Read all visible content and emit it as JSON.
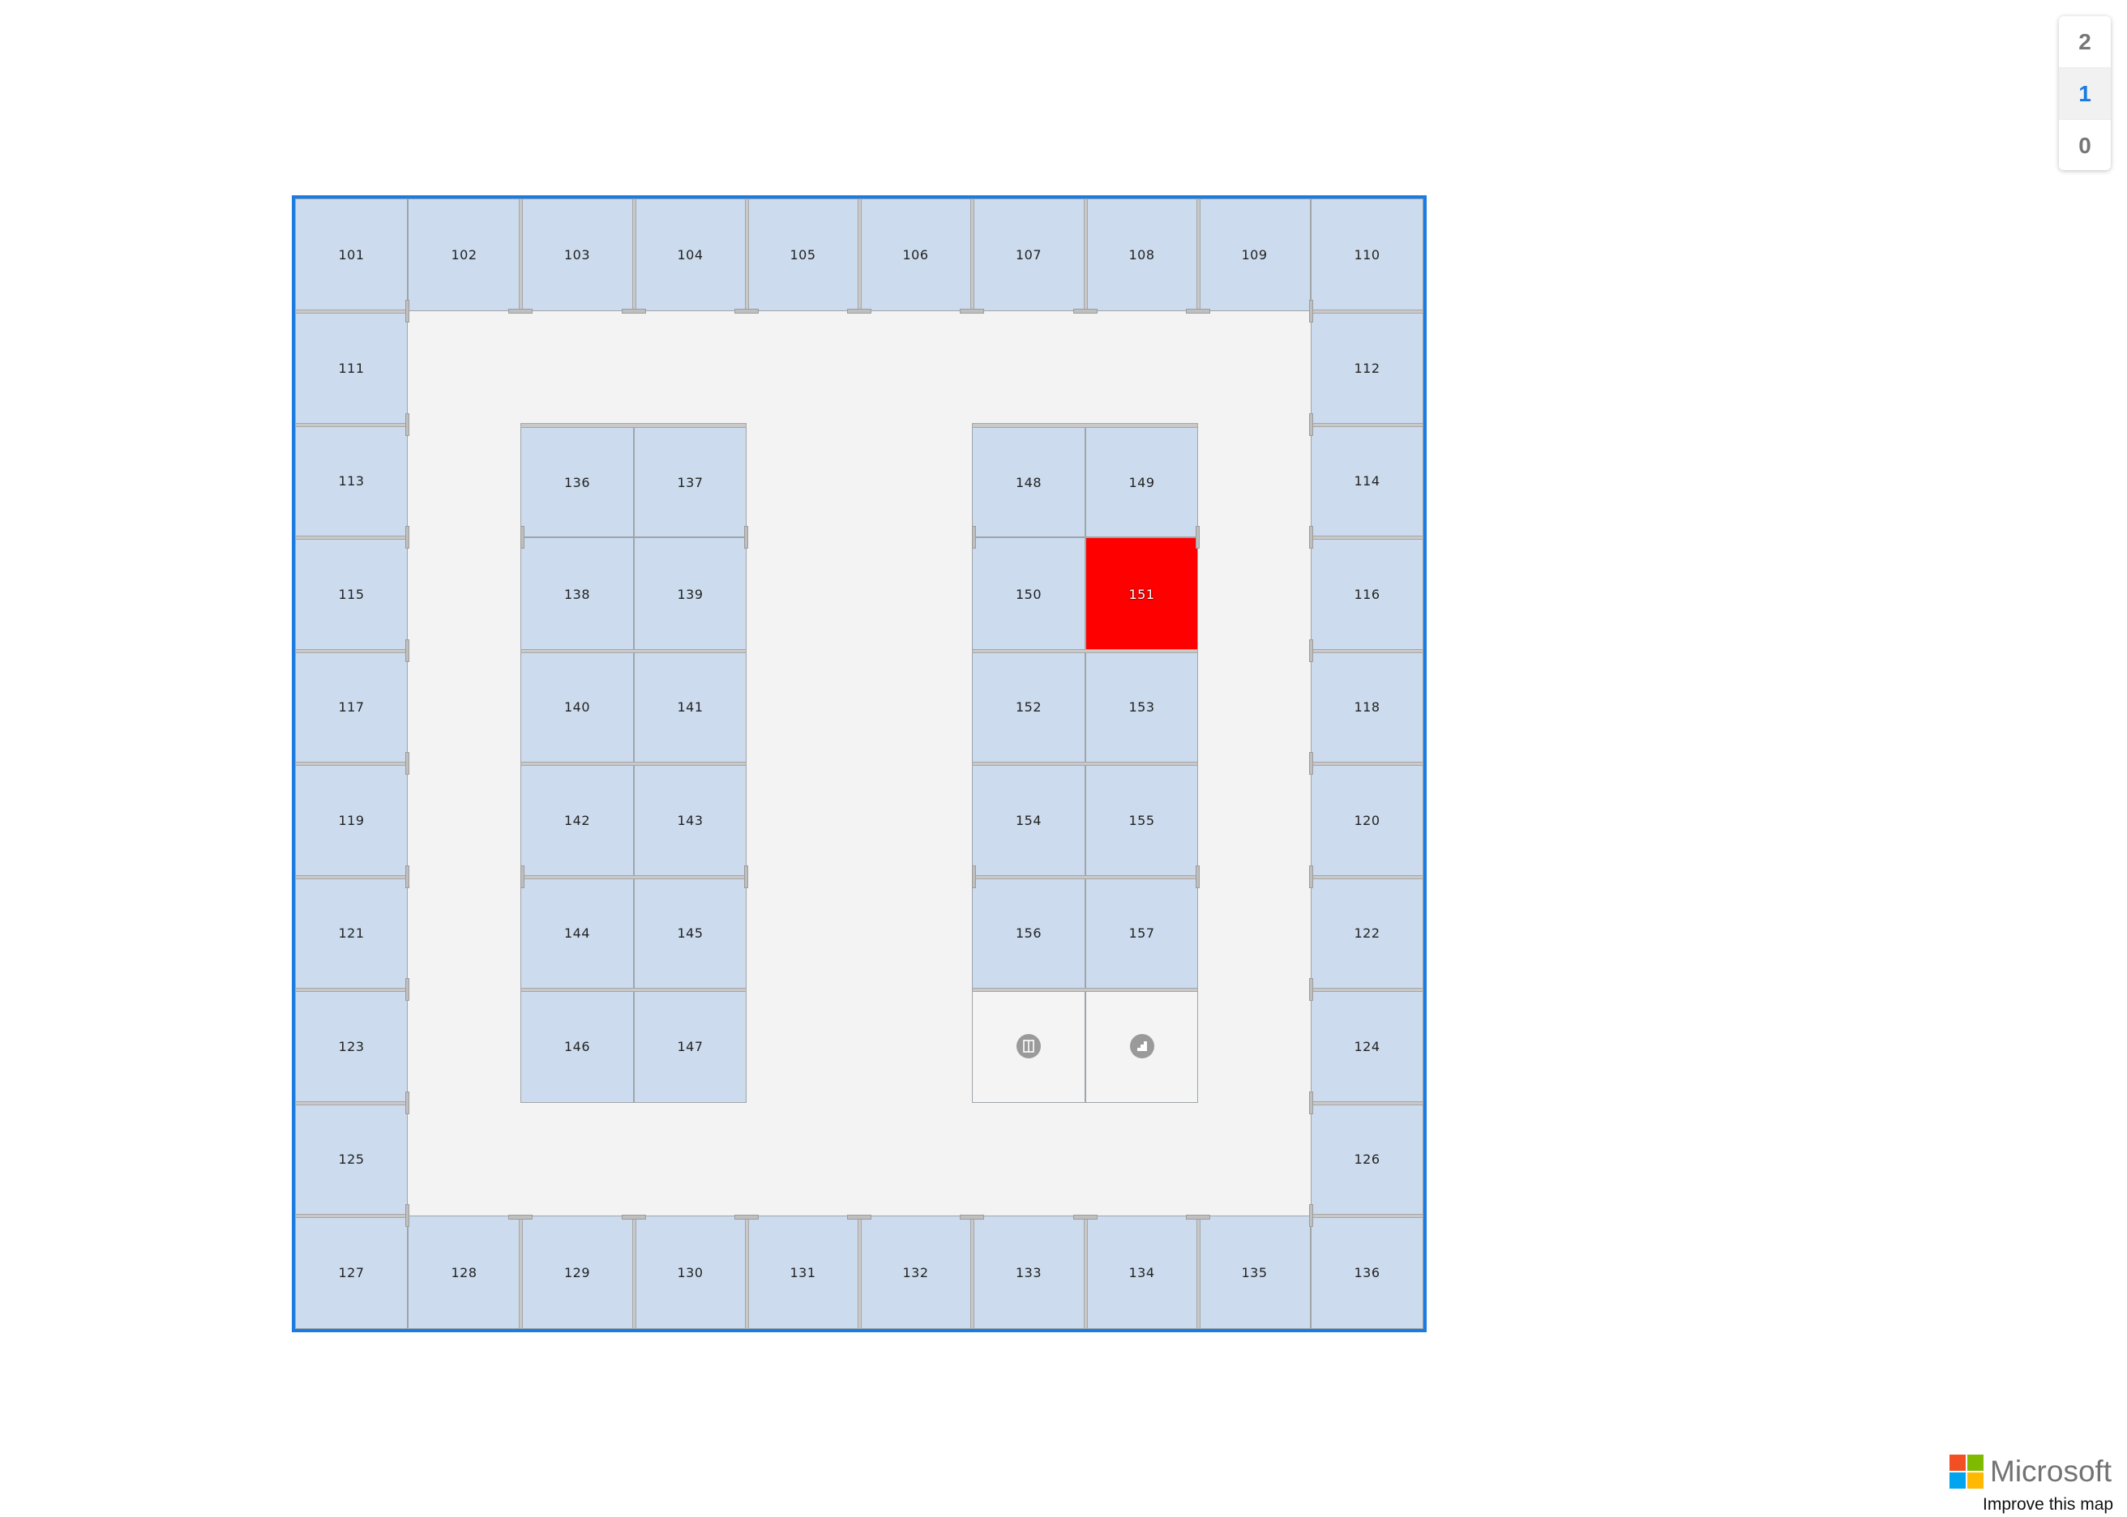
{
  "floors": [
    "2",
    "1",
    "0"
  ],
  "active_floor": "1",
  "selected_room": "151",
  "colors": {
    "building_outline": "#1a7be0",
    "room_fill": "#ccdcee",
    "selected_fill": "#ff0000",
    "corridor": "#f3f3f3",
    "service_fill": "#f4f4f4"
  },
  "rooms": [
    "101",
    "102",
    "103",
    "104",
    "105",
    "106",
    "107",
    "108",
    "109",
    "110",
    "111",
    "112",
    "113",
    "114",
    "115",
    "116",
    "117",
    "118",
    "119",
    "120",
    "121",
    "122",
    "123",
    "124",
    "125",
    "126",
    "127",
    "128",
    "129",
    "130",
    "131",
    "132",
    "133",
    "134",
    "135",
    "136",
    "136",
    "137",
    "138",
    "139",
    "140",
    "141",
    "142",
    "143",
    "144",
    "145",
    "146",
    "147",
    "148",
    "149",
    "150",
    "151",
    "152",
    "153",
    "154",
    "155",
    "156",
    "157"
  ],
  "service_rooms": [
    {
      "icon": "elevator-icon"
    },
    {
      "icon": "stairs-icon"
    }
  ],
  "attribution": {
    "brand": "Microsoft",
    "brand_colors": [
      "#f25022",
      "#7fba00",
      "#00a4ef",
      "#ffb900"
    ],
    "link": "Improve this map"
  }
}
